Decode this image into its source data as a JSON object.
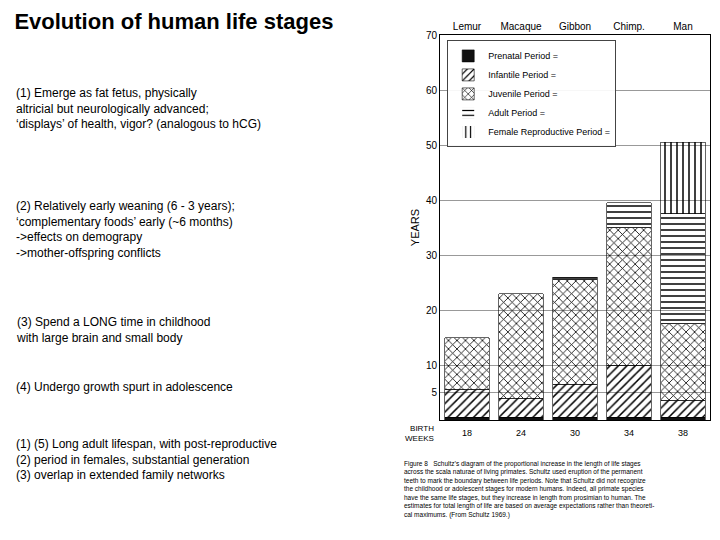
{
  "chart_data": {
    "type": "bar",
    "stacked": true,
    "title": "Evolution of human life stages",
    "categories": [
      "Lemur",
      "Macaque",
      "Gibbon",
      "Chimp.",
      "Man"
    ],
    "series": [
      {
        "name": "Prenatal Period =",
        "color": "#111111",
        "values": [
          0.5,
          0.5,
          0.5,
          0.5,
          0.5
        ]
      },
      {
        "name": "Infantile Period =",
        "color": "#aaaaaa",
        "values": [
          5.0,
          3.5,
          6.0,
          9.5,
          3.0
        ]
      },
      {
        "name": "Juvenile Period =",
        "color": "#dddddd",
        "values": [
          9.5,
          19.0,
          19.0,
          25.0,
          14.0
        ]
      },
      {
        "name": "Adult Period =",
        "color": "#eeeeee",
        "values": [
          0.0,
          0.0,
          0.5,
          4.5,
          20.0
        ]
      },
      {
        "name": "Female Reproductive Period =",
        "color": "#ffffff",
        "values": [
          0.0,
          0.0,
          0.0,
          0.0,
          13.0
        ]
      }
    ],
    "ylabel": "YEARS",
    "ylim": [
      0,
      70
    ],
    "yticks": [
      5,
      10,
      20,
      30,
      40,
      50,
      60,
      70
    ],
    "grid": true,
    "legend": "upper left",
    "annotations": [
      "(1) Emerge as fat fetus, physically\naltricial but neurologically advanced;\n‘displays’ of health, vigor? (analogous to hCG)",
      "(2) Relatively early weaning (6 - 3 years);\n‘complementary foods’ early (~6 months)\n->effects on demograpy\n->mother-offspring conflicts",
      "(3) Spend a LONG time in childhood\nwith large brain and small body",
      "(4) Undergo growth spurt in adolescence",
      "(1) (5) Long adult lifespan, with post-reproductive\n(2) period in females, substantial generation\n(3) overlap in extended family networks"
    ],
    "weeks_label": [
      "BIRTH",
      "WEEKS"
    ],
    "weeks": [
      18,
      24,
      30,
      34,
      38
    ],
    "caption": "Figure 8   Schultz’s diagram of the proportional increase in the length of life stages\nacross the scala naturae of living primates. Schultz used eruption of the permanent\nteeth to mark the boundary between life periods. Note that Schultz did not recognize\nthe childhood or adolescent stages for modern humans. Indeed, all primate species\nhave the same life stages, but they increase in length from prosimian to human. The\nestimates for total length of life are based on average expectations rather than theoreti-\ncal maximums. (From Schultz 1969.)"
  }
}
